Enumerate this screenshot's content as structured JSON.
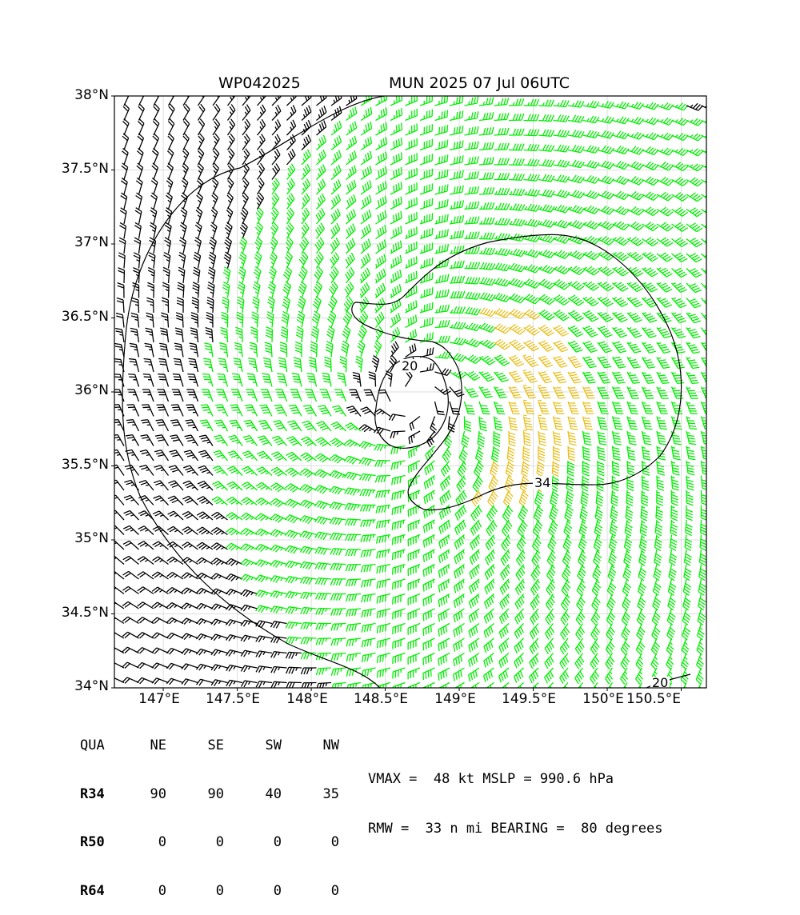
{
  "header": {
    "storm_id": "WP042025",
    "model_time": "MUN 2025 07 Jul 06UTC"
  },
  "axes": {
    "lat_labels": [
      "38°N",
      "37.5°N",
      "37°N",
      "36.5°N",
      "36°N",
      "35.5°N",
      "35°N",
      "34.5°N",
      "34°N"
    ],
    "lon_labels": [
      "147°E",
      "147.5°E",
      "148°E",
      "148.5°E",
      "149°E",
      "149.5°E",
      "150°E",
      "150.5°E"
    ],
    "lat_range": [
      34.0,
      38.0
    ],
    "lon_range": [
      146.67,
      150.67
    ]
  },
  "storm": {
    "center_lat": 35.95,
    "center_lon": 148.7,
    "rmw_nmi": 33,
    "bearing_deg": 80
  },
  "wind_colors": {
    "below_34kt": "#000000",
    "34_to_50kt": "#00ee00",
    "50_to_64kt": "#e8c020"
  },
  "contours": [
    {
      "label": "20",
      "level_kt": 20
    },
    {
      "label": "34",
      "level_kt": 34
    },
    {
      "label": "20",
      "level_kt": 20
    }
  ],
  "radii_table": {
    "header": [
      "QUA",
      "NE",
      "SE",
      "SW",
      "NW"
    ],
    "rows": [
      [
        "R34",
        "90",
        "90",
        "40",
        "35"
      ],
      [
        "R50",
        "0",
        "0",
        "0",
        "0"
      ],
      [
        "R64",
        "0",
        "0",
        "0",
        "0"
      ]
    ]
  },
  "stats": {
    "line1": "VMAX =  48 kt MSLP = 990.6 hPa",
    "line2": "RMW =  33 n mi BEARING =  80 degrees"
  }
}
